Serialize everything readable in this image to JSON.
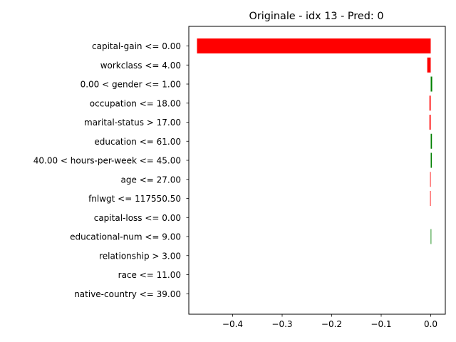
{
  "chart_data": {
    "type": "bar",
    "orientation": "horizontal",
    "title": "Originale - idx 13 - Pred: 0",
    "xlabel": "",
    "ylabel": "",
    "xlim": [
      -0.4885,
      0.0295
    ],
    "xticks": [
      -0.4,
      -0.3,
      -0.2,
      -0.1,
      0.0
    ],
    "xtick_labels": [
      "−0.4",
      "−0.3",
      "−0.2",
      "−0.1",
      "0.0"
    ],
    "grid": false,
    "colors": {
      "negative": "#ff0000",
      "positive": "#008000"
    },
    "categories": [
      "capital-gain <= 0.00",
      "workclass <= 4.00",
      "0.00 < gender <= 1.00",
      "occupation <= 18.00",
      "marital-status > 17.00",
      "education <= 61.00",
      "40.00 < hours-per-week <= 45.00",
      "age <= 27.00",
      "fnlwgt <= 117550.50",
      "capital-loss <= 0.00",
      "educational-num <= 9.00",
      "relationship > 3.00",
      "race <= 11.00",
      "native-country <= 39.00"
    ],
    "values": [
      -0.472,
      -0.007,
      0.003,
      -0.0025,
      -0.0025,
      0.0025,
      0.0022,
      -0.0012,
      -0.0012,
      0.0,
      0.0012,
      0.0,
      0.0,
      0.0
    ]
  }
}
